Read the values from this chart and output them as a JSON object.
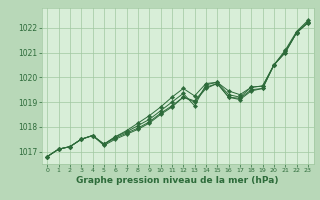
{
  "background_color": "#b8d8b8",
  "plot_bg_color": "#d8eed8",
  "grid_color": "#a0c8a0",
  "line_color": "#2d6b3a",
  "xlabel": "Graphe pression niveau de la mer (hPa)",
  "ylim": [
    1016.5,
    1022.8
  ],
  "xlim": [
    -0.5,
    23.5
  ],
  "yticks": [
    1017,
    1018,
    1019,
    1020,
    1021,
    1022
  ],
  "xticks": [
    0,
    1,
    2,
    3,
    4,
    5,
    6,
    7,
    8,
    9,
    10,
    11,
    12,
    13,
    14,
    15,
    16,
    17,
    18,
    19,
    20,
    21,
    22,
    23
  ],
  "series": [
    [
      1016.8,
      1017.1,
      1017.2,
      1017.5,
      1017.65,
      1017.3,
      1017.6,
      1017.8,
      1018.05,
      1018.3,
      1018.65,
      1019.0,
      1019.35,
      1018.85,
      1019.7,
      1019.8,
      1019.3,
      1019.2,
      1019.6,
      1019.65,
      1020.5,
      1021.05,
      1021.8,
      1022.25
    ],
    [
      1016.8,
      1017.1,
      1017.2,
      1017.5,
      1017.65,
      1017.3,
      1017.55,
      1017.75,
      1017.95,
      1018.2,
      1018.55,
      1018.85,
      1019.2,
      1019.05,
      1019.6,
      1019.75,
      1019.2,
      1019.15,
      1019.5,
      1019.55,
      1020.5,
      1021.0,
      1021.8,
      1022.2
    ],
    [
      1016.8,
      1017.1,
      1017.2,
      1017.5,
      1017.65,
      1017.25,
      1017.5,
      1017.7,
      1017.9,
      1018.15,
      1018.5,
      1018.8,
      1019.2,
      1019.0,
      1019.55,
      1019.75,
      1019.2,
      1019.1,
      1019.45,
      1019.55,
      1020.5,
      1021.0,
      1021.8,
      1022.2
    ],
    [
      1016.8,
      1017.1,
      1017.2,
      1017.5,
      1017.65,
      1017.3,
      1017.6,
      1017.85,
      1018.15,
      1018.45,
      1018.8,
      1019.2,
      1019.55,
      1019.25,
      1019.75,
      1019.8,
      1019.45,
      1019.3,
      1019.6,
      1019.65,
      1020.5,
      1021.1,
      1021.85,
      1022.3
    ]
  ]
}
